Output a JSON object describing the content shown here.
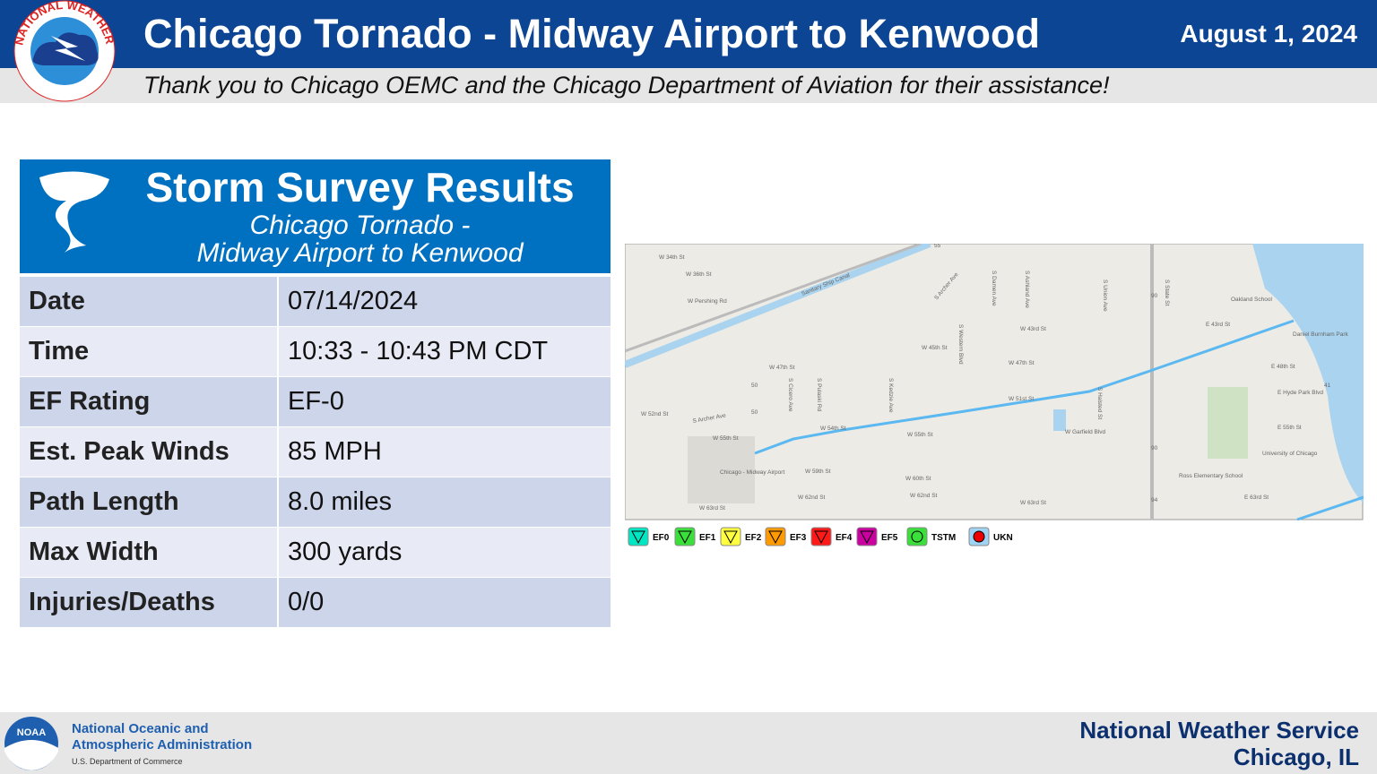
{
  "header": {
    "title": "Chicago Tornado - Midway Airport to Kenwood",
    "date": "August 1, 2024",
    "thanks": "Thank you to Chicago OEMC and the Chicago Department of Aviation for their assistance!",
    "logo_text": "NATIONAL WEATHER SERVICE"
  },
  "panel": {
    "title": "Storm Survey Results",
    "subtitle_1": "Chicago Tornado  -",
    "subtitle_2": "Midway Airport to Kenwood"
  },
  "table": {
    "rows": [
      [
        "Date",
        "07/14/2024"
      ],
      [
        "Time",
        "10:33 - 10:43 PM CDT"
      ],
      [
        "EF Rating",
        "EF-0"
      ],
      [
        "Est. Peak Winds",
        "85 MPH"
      ],
      [
        "Path Length",
        "8.0 miles"
      ],
      [
        "Max Width",
        "300 yards"
      ],
      [
        "Injuries/Deaths",
        "0/0"
      ]
    ]
  },
  "map": {
    "labels": [
      "W 34th St",
      "W 36th St",
      "W Pershing Rd",
      "Sanitary Ship Canal",
      "S Archer Ave",
      "W 43rd St",
      "W 45th St",
      "W 47th St",
      "W 47th St",
      "W 51st St",
      "W 52nd St",
      "S Archer Ave",
      "W 55th St",
      "W 54th St",
      "W 55th St",
      "W Garfield Blvd",
      "W 59th St",
      "W 60th St",
      "W 62nd St",
      "W 62nd St",
      "W 63rd St",
      "W 63rd St",
      "Chicago - Midway Airport",
      "Oakland School",
      "E 43rd St",
      "Daniel Burnham Park",
      "E 48th St",
      "E Hyde Park Blvd",
      "E 55th St",
      "University of Chicago",
      "Ross Elementary School",
      "E 63rd St",
      "S Western Blvd",
      "S Damen Ave",
      "S Ashland Ave",
      "S Union Ave",
      "S State St",
      "S Halsted St",
      "S Kedzie Ave",
      "S Pulaski Rd",
      "S Cicero Ave",
      "55",
      "50",
      "50",
      "90",
      "90",
      "94",
      "41"
    ],
    "legend": [
      "EF0",
      "EF1",
      "EF2",
      "EF3",
      "EF4",
      "EF5",
      "TSTM",
      "UKN"
    ]
  },
  "footer": {
    "noaa_logo": "NOAA",
    "agency_1": "National Oceanic and",
    "agency_2": "Atmospheric Administration",
    "dept": "U.S. Department of Commerce",
    "office_1": "National Weather Service",
    "office_2": "Chicago, IL"
  }
}
